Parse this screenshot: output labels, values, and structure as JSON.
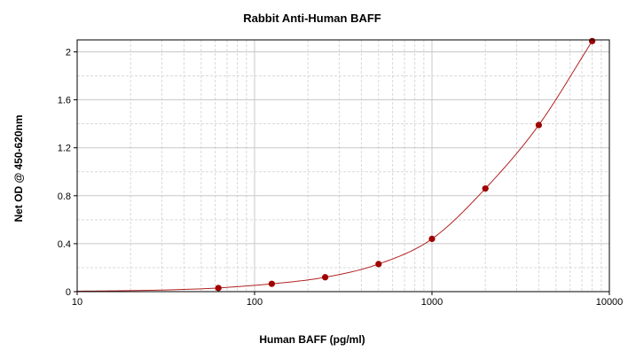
{
  "chart_data": {
    "type": "scatter",
    "title": "Rabbit Anti-Human BAFF",
    "xlabel": "Human BAFF (pg/ml)",
    "ylabel": "Net OD @ 450-620nm",
    "x_scale": "log",
    "xlim": [
      10,
      10000
    ],
    "ylim": [
      0,
      2.1
    ],
    "x_ticks": [
      "10",
      "100",
      "1000",
      "10000"
    ],
    "y_ticks": [
      "0",
      "0.4",
      "0.8",
      "1.2",
      "1.6",
      "2"
    ],
    "grid": true,
    "legend": "none",
    "series": [
      {
        "marker_color": "#a00000",
        "line_color": "#b22222",
        "points": [
          {
            "x": 62.5,
            "y": 0.03
          },
          {
            "x": 125,
            "y": 0.065
          },
          {
            "x": 250,
            "y": 0.12
          },
          {
            "x": 500,
            "y": 0.23
          },
          {
            "x": 1000,
            "y": 0.44
          },
          {
            "x": 2000,
            "y": 0.86
          },
          {
            "x": 4000,
            "y": 1.39
          },
          {
            "x": 8000,
            "y": 2.09
          }
        ]
      }
    ]
  }
}
